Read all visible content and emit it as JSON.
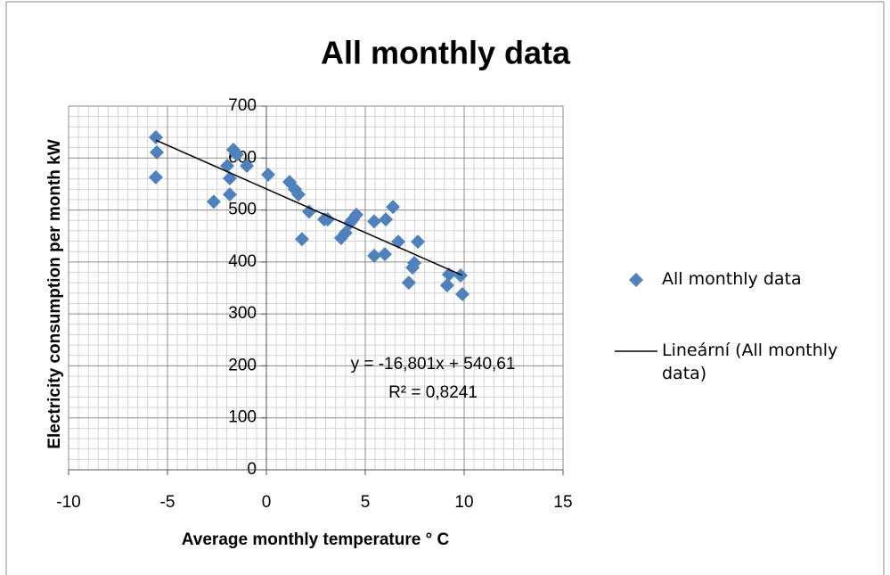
{
  "chart_data": {
    "type": "scatter",
    "title": "All monthly data",
    "x_label": "Average monthly temperature ° C",
    "y_label": "Electricity consumption per month kW",
    "xlim": [
      -10,
      15
    ],
    "xticks": [
      -10,
      -5,
      0,
      5,
      10,
      15
    ],
    "ylim": [
      0,
      700
    ],
    "yticks": [
      0,
      100,
      200,
      300,
      400,
      500,
      600,
      700
    ],
    "grid": true,
    "legend": "right",
    "series": [
      {
        "name": "All monthly data",
        "color": "#4f81bd",
        "marker": "diamond",
        "x": [
          -5.59,
          -5.54,
          -5.59,
          -2.66,
          -1.85,
          -1.85,
          -1.67,
          -1.49,
          -1.98,
          -0.99,
          0.09,
          1.17,
          1.44,
          1.62,
          2.16,
          1.8,
          2.93,
          3.1,
          3.78,
          4.0,
          4.23,
          4.37,
          4.55,
          5.45,
          6.04,
          6.4,
          5.45,
          5.99,
          6.67,
          7.66,
          7.2,
          7.39,
          7.48,
          9.14,
          9.23,
          9.82,
          9.91
        ],
        "values": [
          640,
          611,
          563,
          516,
          530,
          561,
          616,
          607,
          585,
          585,
          568,
          554,
          540,
          530,
          497,
          444,
          482,
          482,
          446,
          456,
          475,
          482,
          491,
          478,
          482,
          506,
          412,
          415,
          439,
          439,
          360,
          389,
          398,
          355,
          376,
          374,
          338
        ]
      },
      {
        "name": "Lineární (All monthly data)",
        "color": "#000000",
        "line": true,
        "x": [
          -5.59,
          9.91
        ],
        "values": [
          634.5,
          374.1
        ]
      }
    ],
    "annotations": [
      "y = -16,801x + 540,61",
      "R² = 0,8241"
    ]
  }
}
